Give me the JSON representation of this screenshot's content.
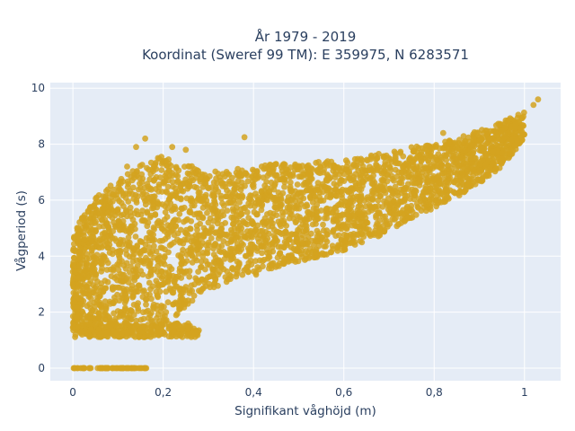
{
  "chart_data": {
    "type": "scatter",
    "title_lines": [
      "År 1979 - 2019",
      "Koordinat (Sweref 99 TM): E 359975, N 6283571"
    ],
    "xlabel": "Signifikant våghöjd (m)",
    "ylabel": "Vågperiod (s)",
    "xlim": [
      -0.05,
      1.08
    ],
    "ylim": [
      -0.45,
      10.2
    ],
    "x_ticks": [
      0,
      0.2,
      0.4,
      0.6,
      0.8,
      1
    ],
    "x_tick_labels": [
      "0",
      "0,2",
      "0,4",
      "0,6",
      "0,8",
      "1"
    ],
    "y_ticks": [
      0,
      2,
      4,
      6,
      8,
      10
    ],
    "y_tick_labels": [
      "0",
      "2",
      "4",
      "6",
      "8",
      "10"
    ],
    "grid": true,
    "marker_color": "#D4A320",
    "plot_background": "#E5ECF6",
    "point_cloud_envelope": [
      {
        "x": 0.0,
        "y_min": 1.4,
        "y_max": 4.8
      },
      {
        "x": 0.05,
        "y_min": 1.1,
        "y_max": 6.2
      },
      {
        "x": 0.1,
        "y_min": 1.1,
        "y_max": 6.7
      },
      {
        "x": 0.15,
        "y_min": 1.2,
        "y_max": 7.3
      },
      {
        "x": 0.2,
        "y_min": 1.4,
        "y_max": 7.6
      },
      {
        "x": 0.25,
        "y_min": 2.2,
        "y_max": 7.3
      },
      {
        "x": 0.3,
        "y_min": 2.8,
        "y_max": 7.0
      },
      {
        "x": 0.35,
        "y_min": 3.1,
        "y_max": 7.1
      },
      {
        "x": 0.4,
        "y_min": 3.3,
        "y_max": 7.2
      },
      {
        "x": 0.45,
        "y_min": 3.6,
        "y_max": 7.3
      },
      {
        "x": 0.5,
        "y_min": 3.8,
        "y_max": 7.3
      },
      {
        "x": 0.55,
        "y_min": 4.0,
        "y_max": 7.4
      },
      {
        "x": 0.6,
        "y_min": 4.2,
        "y_max": 7.4
      },
      {
        "x": 0.65,
        "y_min": 4.5,
        "y_max": 7.6
      },
      {
        "x": 0.7,
        "y_min": 4.9,
        "y_max": 7.7
      },
      {
        "x": 0.75,
        "y_min": 5.3,
        "y_max": 7.9
      },
      {
        "x": 0.8,
        "y_min": 5.7,
        "y_max": 8.0
      },
      {
        "x": 0.85,
        "y_min": 6.1,
        "y_max": 8.2
      },
      {
        "x": 0.9,
        "y_min": 6.6,
        "y_max": 8.5
      },
      {
        "x": 0.95,
        "y_min": 7.2,
        "y_max": 8.8
      },
      {
        "x": 1.0,
        "y_min": 8.2,
        "y_max": 9.2
      }
    ],
    "low_period_band": {
      "x_range": [
        0.0,
        0.28
      ],
      "y_range": [
        1.1,
        1.6
      ]
    },
    "zero_period_points": {
      "x_range": [
        0.0,
        0.17
      ],
      "y": 0
    },
    "outliers": [
      {
        "x": 0.0,
        "y": 1.45
      },
      {
        "x": 0.16,
        "y": 8.2
      },
      {
        "x": 0.14,
        "y": 7.9
      },
      {
        "x": 0.22,
        "y": 7.9
      },
      {
        "x": 0.25,
        "y": 7.8
      },
      {
        "x": 0.38,
        "y": 8.25
      },
      {
        "x": 0.12,
        "y": 7.2
      },
      {
        "x": 1.03,
        "y": 9.6
      },
      {
        "x": 1.02,
        "y": 9.4
      },
      {
        "x": 0.95,
        "y": 8.5
      },
      {
        "x": 0.82,
        "y": 8.4
      }
    ]
  }
}
